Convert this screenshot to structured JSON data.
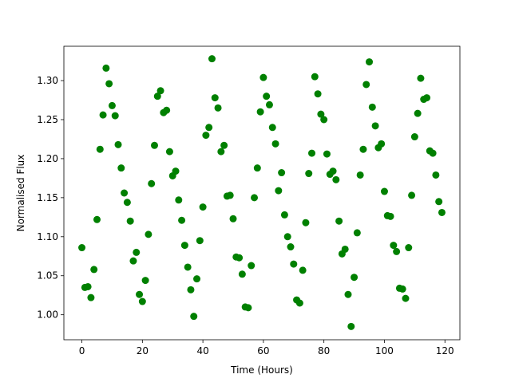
{
  "chart_data": {
    "type": "scatter",
    "x_label": "Time (Hours)",
    "y_label": "Normalised Flux",
    "color": "#008000",
    "x": [
      0,
      1,
      2,
      3,
      4,
      5,
      6,
      7,
      8,
      9,
      10,
      11,
      12,
      13,
      14,
      15,
      16,
      17,
      18,
      19,
      20,
      21,
      22,
      23,
      24,
      25,
      26,
      27,
      28,
      29,
      30,
      31,
      32,
      33,
      34,
      35,
      36,
      37,
      38,
      39,
      40,
      41,
      42,
      43,
      44,
      45,
      46,
      47,
      48,
      49,
      50,
      51,
      52,
      53,
      54,
      55,
      56,
      57,
      58,
      59,
      60,
      61,
      62,
      63,
      64,
      65,
      66,
      67,
      68,
      69,
      70,
      71,
      72,
      73,
      74,
      75,
      76,
      77,
      78,
      79,
      80,
      81,
      82,
      83,
      84,
      85,
      86,
      87,
      88,
      89,
      90,
      91,
      92,
      93,
      94,
      95,
      96,
      97,
      98,
      99,
      100,
      101,
      102,
      103,
      104,
      105,
      106,
      107,
      108,
      109,
      110,
      111,
      112,
      113,
      114,
      115,
      116,
      117,
      118,
      119
    ],
    "values": [
      1.086,
      1.035,
      1.036,
      1.022,
      1.058,
      1.122,
      1.212,
      1.256,
      1.316,
      1.296,
      1.268,
      1.255,
      1.218,
      1.188,
      1.156,
      1.144,
      1.12,
      1.069,
      1.08,
      1.026,
      1.017,
      1.044,
      1.103,
      1.168,
      1.217,
      1.28,
      1.287,
      1.259,
      1.262,
      1.209,
      1.178,
      1.184,
      1.147,
      1.121,
      1.089,
      1.061,
      1.032,
      0.998,
      1.046,
      1.095,
      1.138,
      1.23,
      1.24,
      1.328,
      1.278,
      1.265,
      1.209,
      1.217,
      1.152,
      1.153,
      1.123,
      1.074,
      1.073,
      1.052,
      1.01,
      1.009,
      1.063,
      1.15,
      1.188,
      1.26,
      1.304,
      1.28,
      1.269,
      1.24,
      1.219,
      1.159,
      1.182,
      1.128,
      1.1,
      1.087,
      1.065,
      1.019,
      1.015,
      1.057,
      1.118,
      1.181,
      1.207,
      1.305,
      1.283,
      1.257,
      1.25,
      1.206,
      1.18,
      1.184,
      1.173,
      1.12,
      1.078,
      1.084,
      1.026,
      0.985,
      1.048,
      1.105,
      1.179,
      1.212,
      1.295,
      1.324,
      1.266,
      1.242,
      1.214,
      1.219,
      1.158,
      1.127,
      1.126,
      1.089,
      1.081,
      1.034,
      1.033,
      1.021,
      1.086,
      1.153,
      1.228,
      1.258,
      1.303,
      1.276,
      1.278,
      1.21,
      1.207,
      1.179,
      1.145,
      1.131
    ],
    "xlim": [
      -5.95,
      124.95
    ],
    "xticks": [
      0,
      20,
      40,
      60,
      80,
      100,
      120
    ],
    "ylim": [
      0.968,
      1.344
    ],
    "yticks": [
      {
        "value": 1.0,
        "label": "1.00"
      },
      {
        "value": 1.05,
        "label": "1.05"
      },
      {
        "value": 1.1,
        "label": "1.10"
      },
      {
        "value": 1.15,
        "label": "1.15"
      },
      {
        "value": 1.2,
        "label": "1.20"
      },
      {
        "value": 1.25,
        "label": "1.25"
      },
      {
        "value": 1.3,
        "label": "1.30"
      }
    ]
  }
}
